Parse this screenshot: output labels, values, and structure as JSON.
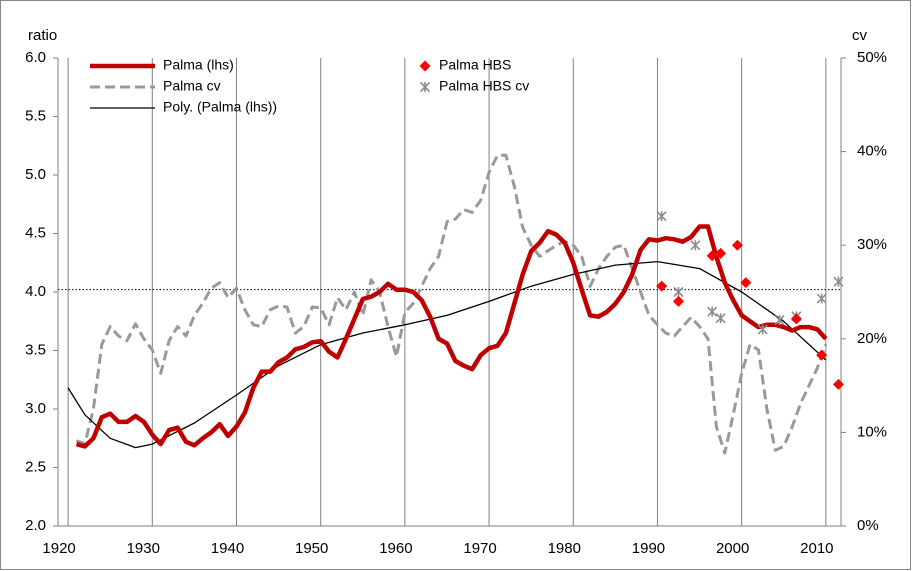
{
  "chart_data": {
    "type": "line",
    "y_label": "ratio",
    "y2_label": "cv",
    "x": [
      1921,
      1922,
      1923,
      1924,
      1925,
      1926,
      1927,
      1928,
      1929,
      1930,
      1931,
      1932,
      1933,
      1934,
      1935,
      1936,
      1937,
      1938,
      1939,
      1940,
      1941,
      1942,
      1943,
      1944,
      1945,
      1946,
      1947,
      1948,
      1949,
      1950,
      1951,
      1952,
      1953,
      1954,
      1955,
      1956,
      1957,
      1958,
      1959,
      1960,
      1961,
      1962,
      1963,
      1964,
      1965,
      1966,
      1967,
      1968,
      1969,
      1970,
      1971,
      1972,
      1973,
      1974,
      1975,
      1976,
      1977,
      1978,
      1979,
      1980,
      1981,
      1982,
      1983,
      1984,
      1985,
      1986,
      1987,
      1988,
      1989,
      1990,
      1991,
      1992,
      1993,
      1994,
      1995,
      1996,
      1997,
      1998,
      1999,
      2000,
      2001,
      2002,
      2003,
      2004,
      2005,
      2006,
      2007,
      2008,
      2009,
      2010
    ],
    "series": [
      {
        "name": "Palma (lhs)",
        "color": "#c00000",
        "style": "solid",
        "values": [
          2.7,
          2.68,
          2.75,
          2.93,
          2.96,
          2.89,
          2.89,
          2.94,
          2.89,
          2.78,
          2.7,
          2.82,
          2.84,
          2.72,
          2.69,
          2.75,
          2.8,
          2.87,
          2.77,
          2.85,
          2.97,
          3.18,
          3.32,
          3.32,
          3.4,
          3.44,
          3.51,
          3.53,
          3.57,
          3.58,
          3.49,
          3.44,
          3.6,
          3.77,
          3.94,
          3.96,
          4.0,
          4.07,
          4.02,
          4.02,
          4.0,
          3.93,
          3.79,
          3.6,
          3.56,
          3.41,
          3.37,
          3.34,
          3.46,
          3.52,
          3.54,
          3.65,
          3.9,
          4.15,
          4.35,
          4.42,
          4.52,
          4.49,
          4.42,
          4.25,
          4.02,
          3.8,
          3.79,
          3.83,
          3.9,
          4.0,
          4.15,
          4.36,
          4.45,
          4.44,
          4.46,
          4.45,
          4.43,
          4.47,
          4.56,
          4.56,
          4.3,
          4.08,
          3.93,
          3.8,
          3.75,
          3.7,
          3.72,
          3.72,
          3.7,
          3.67,
          3.7,
          3.7,
          3.68,
          3.6
        ]
      },
      {
        "name": "Palma cv",
        "color": "#999999",
        "style": "dashed",
        "axis": "y2",
        "values": [
          9.1,
          8.8,
          12.5,
          19.4,
          21.3,
          20.3,
          19.8,
          21.6,
          20,
          18.8,
          16.3,
          19.8,
          21.3,
          20.3,
          22.5,
          23.8,
          25.4,
          26,
          24.4,
          25.4,
          23.1,
          21.5,
          21.3,
          23.1,
          23.5,
          23.4,
          20.6,
          21.3,
          23.4,
          23.3,
          21.5,
          24.4,
          23.1,
          25,
          22.5,
          26.3,
          25,
          21.3,
          18.1,
          22.8,
          23.8,
          25.6,
          27.5,
          28.8,
          32.5,
          32.8,
          33.8,
          33.5,
          34.8,
          37.8,
          39.6,
          39.6,
          36.3,
          31.9,
          30,
          28.8,
          29.4,
          30,
          30.4,
          30,
          28.8,
          25.6,
          27.5,
          28.8,
          29.8,
          30,
          27.5,
          25,
          22.5,
          21.5,
          20.6,
          20.3,
          21.3,
          22.3,
          21.3,
          20,
          10.6,
          7.8,
          11.9,
          16.3,
          19.4,
          18.8,
          12.5,
          8.1,
          8.5,
          10.6,
          13.1,
          15,
          16.9,
          19.4
        ]
      },
      {
        "name": "Poly. (Palma (lhs))",
        "color": "#000000",
        "style": "thin",
        "x": [
          1920,
          1922,
          1925,
          1928,
          1930,
          1935,
          1940,
          1945,
          1950,
          1955,
          1960,
          1965,
          1970,
          1975,
          1980,
          1985,
          1990,
          1995,
          2000,
          2005,
          2010
        ],
        "values": [
          3.18,
          2.95,
          2.75,
          2.67,
          2.7,
          2.88,
          3.12,
          3.37,
          3.55,
          3.65,
          3.72,
          3.8,
          3.92,
          4.05,
          4.15,
          4.23,
          4.26,
          4.2,
          4.0,
          3.75,
          3.42
        ]
      },
      {
        "name": "Palma HBS",
        "color": "#ff0000",
        "style": "diamond",
        "x": [
          1990.5,
          1992.5,
          1996.5,
          1997.5,
          1999.5,
          2000.5,
          2006.5,
          2009.5,
          2011.5
        ],
        "values": [
          4.05,
          3.92,
          4.31,
          4.33,
          4.4,
          4.08,
          3.77,
          3.46,
          3.21
        ]
      },
      {
        "name": "Palma HBS cv",
        "color": "#8c8c8c",
        "style": "cross",
        "axis": "y2",
        "x": [
          1990.5,
          1992.5,
          1994.5,
          1996.5,
          1997.5,
          2002.5,
          2004.5,
          2006.5,
          2009.5,
          2011.5
        ],
        "values": [
          33.1,
          25,
          30,
          22.9,
          22.2,
          21,
          22,
          22.4,
          24.3,
          26.1
        ]
      }
    ],
    "reference_line": 4.02,
    "xlim": [
      1918.8,
      2011.8
    ],
    "xticks": [
      1920,
      1930,
      1940,
      1950,
      1960,
      1970,
      1980,
      1990,
      2000,
      2010
    ],
    "ylim": [
      2,
      6
    ],
    "yticks": [
      {
        "value": 2,
        "label": "2.0"
      },
      {
        "value": 2.5,
        "label": "2.5"
      },
      {
        "value": 3,
        "label": "3.0"
      },
      {
        "value": 3.5,
        "label": "3.5"
      },
      {
        "value": 4,
        "label": "4.0"
      },
      {
        "value": 4.5,
        "label": "4.5"
      },
      {
        "value": 5,
        "label": "5.0"
      },
      {
        "value": 5.5,
        "label": "5.5"
      },
      {
        "value": 6,
        "label": "6.0"
      }
    ],
    "y2lim": [
      0,
      50
    ],
    "y2ticks": [
      {
        "value": 0,
        "label": "0%"
      },
      {
        "value": 10,
        "label": "10%"
      },
      {
        "value": 20,
        "label": "20%"
      },
      {
        "value": 30,
        "label": "30%"
      },
      {
        "value": 40,
        "label": "40%"
      },
      {
        "value": 50,
        "label": "50%"
      }
    ],
    "grid": "x"
  }
}
